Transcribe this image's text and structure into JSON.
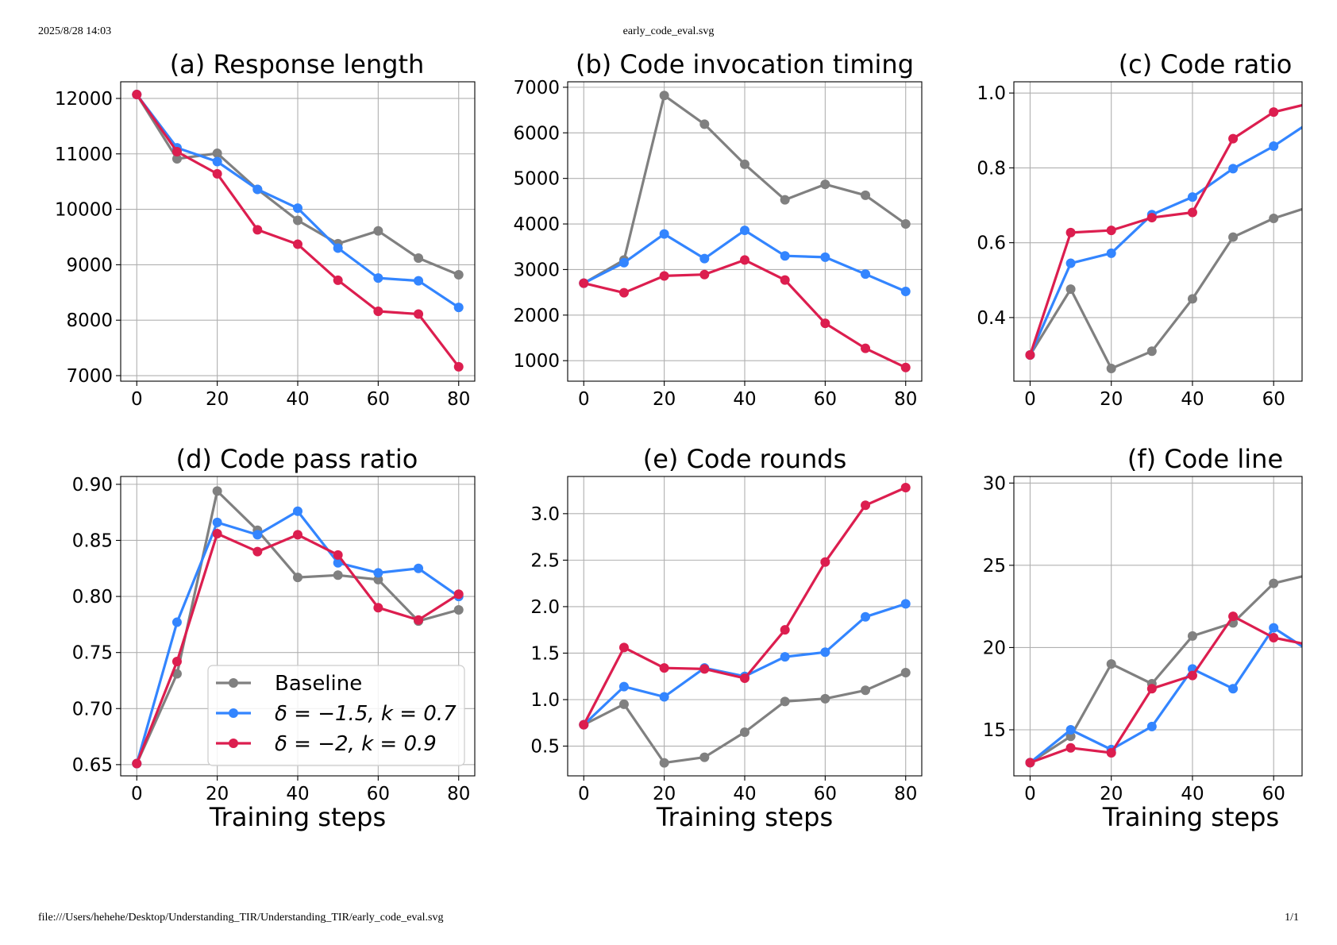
{
  "header": {
    "timestamp": "2025/8/28 14:03",
    "document_title": "early_code_eval.svg"
  },
  "footer": {
    "file_path": "file:///Users/hehehe/Desktop/Understanding_TIR/Understanding_TIR/early_code_eval.svg",
    "page_number": "1/1"
  },
  "legend": {
    "location": "lower-right of panel (d)",
    "entries": [
      "Baseline",
      "δ = −1.5, k = 0.7",
      "δ = −2, k = 0.9"
    ]
  },
  "colors": {
    "Baseline": "#808080",
    "δ = −1.5, k = 0.7": "#3385ff",
    "δ = −2, k = 0.9": "#dc1e4f"
  },
  "chart_data": [
    {
      "type": "line",
      "title": "(a) Response length",
      "xlabel": "",
      "x": [
        0,
        10,
        20,
        30,
        40,
        50,
        60,
        70,
        80
      ],
      "xticks": [
        0,
        20,
        40,
        60,
        80
      ],
      "xlim": [
        -4,
        84
      ],
      "yticks": [
        7000,
        8000,
        9000,
        10000,
        11000,
        12000
      ],
      "yticklabels": [
        "7000",
        "8000",
        "9000",
        "10000",
        "11000",
        "12000"
      ],
      "ylim": [
        6900,
        12300
      ],
      "grid": true,
      "series": [
        {
          "name": "Baseline",
          "values": [
            12070,
            10910,
            11010,
            10360,
            9800,
            9380,
            9610,
            9120,
            8820
          ]
        },
        {
          "name": "δ = −1.5, k = 0.7",
          "values": [
            12070,
            11110,
            10860,
            10360,
            10020,
            9300,
            8760,
            8710,
            8230
          ]
        },
        {
          "name": "δ = −2, k = 0.9",
          "values": [
            12070,
            11040,
            10640,
            9630,
            9370,
            8720,
            8160,
            8110,
            7160
          ]
        }
      ]
    },
    {
      "type": "line",
      "title": "(b) Code invocation timing",
      "xlabel": "",
      "x": [
        0,
        10,
        20,
        30,
        40,
        50,
        60,
        70,
        80
      ],
      "xticks": [
        0,
        20,
        40,
        60,
        80
      ],
      "xlim": [
        -4,
        84
      ],
      "yticks": [
        1000,
        2000,
        3000,
        4000,
        5000,
        6000,
        7000
      ],
      "yticklabels": [
        "1000",
        "2000",
        "3000",
        "4000",
        "5000",
        "6000",
        "7000"
      ],
      "ylim": [
        550,
        7120
      ],
      "grid": true,
      "series": [
        {
          "name": "Baseline",
          "values": [
            2700,
            3210,
            6820,
            6190,
            5310,
            4530,
            4870,
            4630,
            4000
          ]
        },
        {
          "name": "δ = −1.5, k = 0.7",
          "values": [
            2700,
            3150,
            3780,
            3240,
            3860,
            3300,
            3270,
            2900,
            2520
          ]
        },
        {
          "name": "δ = −2, k = 0.9",
          "values": [
            2700,
            2490,
            2860,
            2890,
            3210,
            2770,
            1820,
            1270,
            850
          ]
        }
      ]
    },
    {
      "type": "line",
      "title": "(c) Code ratio",
      "xlabel": "",
      "x": [
        0,
        10,
        20,
        30,
        40,
        50,
        60,
        70
      ],
      "xticks": [
        0,
        20,
        40,
        60
      ],
      "xlim": [
        -4,
        67
      ],
      "yticks": [
        0.4,
        0.6,
        0.8,
        1.0
      ],
      "yticklabels": [
        "0.4",
        "0.6",
        "0.8",
        "1.0"
      ],
      "ylim": [
        0.23,
        1.03
      ],
      "grid": true,
      "series": [
        {
          "name": "Baseline",
          "values": [
            0.3,
            0.476,
            0.264,
            0.31,
            0.45,
            0.615,
            0.665,
            0.7
          ]
        },
        {
          "name": "δ = −1.5, k = 0.7",
          "values": [
            0.3,
            0.545,
            0.572,
            0.675,
            0.722,
            0.798,
            0.858,
            0.93
          ]
        },
        {
          "name": "δ = −2, k = 0.9",
          "values": [
            0.3,
            0.627,
            0.633,
            0.667,
            0.681,
            0.878,
            0.949,
            0.975
          ]
        }
      ]
    },
    {
      "type": "line",
      "title": "(d) Code pass ratio",
      "xlabel": "Training steps",
      "x": [
        0,
        10,
        20,
        30,
        40,
        50,
        60,
        70,
        80
      ],
      "xticks": [
        0,
        20,
        40,
        60,
        80
      ],
      "xlim": [
        -4,
        84
      ],
      "yticks": [
        0.65,
        0.7,
        0.75,
        0.8,
        0.85,
        0.9
      ],
      "yticklabels": [
        "0.65",
        "0.70",
        "0.75",
        "0.80",
        "0.85",
        "0.90"
      ],
      "ylim": [
        0.64,
        0.907
      ],
      "grid": true,
      "series": [
        {
          "name": "Baseline",
          "values": [
            0.651,
            0.731,
            0.894,
            0.859,
            0.817,
            0.819,
            0.815,
            0.778,
            0.788
          ]
        },
        {
          "name": "δ = −1.5, k = 0.7",
          "values": [
            0.651,
            0.777,
            0.866,
            0.855,
            0.876,
            0.83,
            0.821,
            0.825,
            0.8
          ]
        },
        {
          "name": "δ = −2, k = 0.9",
          "values": [
            0.651,
            0.742,
            0.856,
            0.84,
            0.855,
            0.837,
            0.79,
            0.779,
            0.802
          ]
        }
      ]
    },
    {
      "type": "line",
      "title": "(e) Code rounds",
      "xlabel": "Training steps",
      "x": [
        0,
        10,
        20,
        30,
        40,
        50,
        60,
        70,
        80
      ],
      "xticks": [
        0,
        20,
        40,
        60,
        80
      ],
      "xlim": [
        -4,
        84
      ],
      "yticks": [
        0.5,
        1.0,
        1.5,
        2.0,
        2.5,
        3.0
      ],
      "yticklabels": [
        "0.5",
        "1.0",
        "1.5",
        "2.0",
        "2.5",
        "3.0"
      ],
      "ylim": [
        0.18,
        3.4
      ],
      "grid": true,
      "series": [
        {
          "name": "Baseline",
          "values": [
            0.73,
            0.95,
            0.32,
            0.38,
            0.65,
            0.98,
            1.01,
            1.1,
            1.29
          ]
        },
        {
          "name": "δ = −1.5, k = 0.7",
          "values": [
            0.73,
            1.14,
            1.03,
            1.34,
            1.25,
            1.46,
            1.51,
            1.89,
            2.03
          ]
        },
        {
          "name": "δ = −2, k = 0.9",
          "values": [
            0.73,
            1.56,
            1.34,
            1.33,
            1.23,
            1.75,
            2.48,
            3.09,
            3.28
          ]
        }
      ]
    },
    {
      "type": "line",
      "title": "(f) Code line",
      "xlabel": "Training steps",
      "x": [
        0,
        10,
        20,
        30,
        40,
        50,
        60,
        70
      ],
      "xticks": [
        0,
        20,
        40,
        60
      ],
      "xlim": [
        -4,
        67
      ],
      "yticks": [
        15,
        20,
        25,
        30
      ],
      "yticklabels": [
        "15",
        "20",
        "25",
        "30"
      ],
      "ylim": [
        12.2,
        30.4
      ],
      "grid": true,
      "series": [
        {
          "name": "Baseline",
          "values": [
            13.0,
            14.6,
            19.0,
            17.8,
            20.7,
            21.5,
            23.9,
            24.5
          ]
        },
        {
          "name": "δ = −1.5, k = 0.7",
          "values": [
            13.0,
            15.0,
            13.8,
            15.2,
            18.7,
            17.5,
            21.2,
            19.6
          ]
        },
        {
          "name": "δ = −2, k = 0.9",
          "values": [
            13.0,
            13.9,
            13.6,
            17.5,
            18.3,
            21.9,
            20.6,
            20.1
          ]
        }
      ]
    }
  ]
}
